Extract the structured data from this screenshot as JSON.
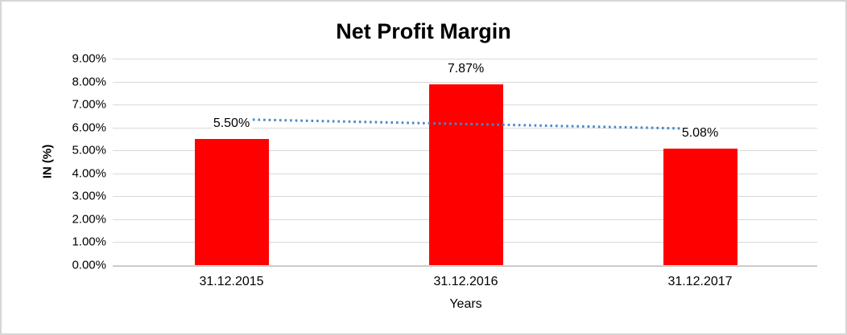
{
  "chart_data": {
    "type": "bar",
    "title": "Net Profit Margin",
    "xlabel": "Years",
    "ylabel": "IN (%)",
    "categories": [
      "31.12.2015",
      "31.12.2016",
      "31.12.2017"
    ],
    "values": [
      5.5,
      7.87,
      5.08
    ],
    "data_labels": [
      "5.50%",
      "7.87%",
      "5.08%"
    ],
    "y_tick_labels": [
      "0.00%",
      "1.00%",
      "2.00%",
      "3.00%",
      "4.00%",
      "5.00%",
      "6.00%",
      "7.00%",
      "8.00%",
      "9.00%"
    ],
    "ylim": [
      0,
      9
    ],
    "grid": true,
    "legend": "none",
    "bar_color": "#FF0000",
    "gridline_color": "#D9D9D9",
    "axis_line_color": "#BFBFBF",
    "trendline": {
      "type": "linear",
      "style": "dotted",
      "color": "#4A86C8",
      "start_value": 6.36,
      "end_value": 5.94
    }
  }
}
